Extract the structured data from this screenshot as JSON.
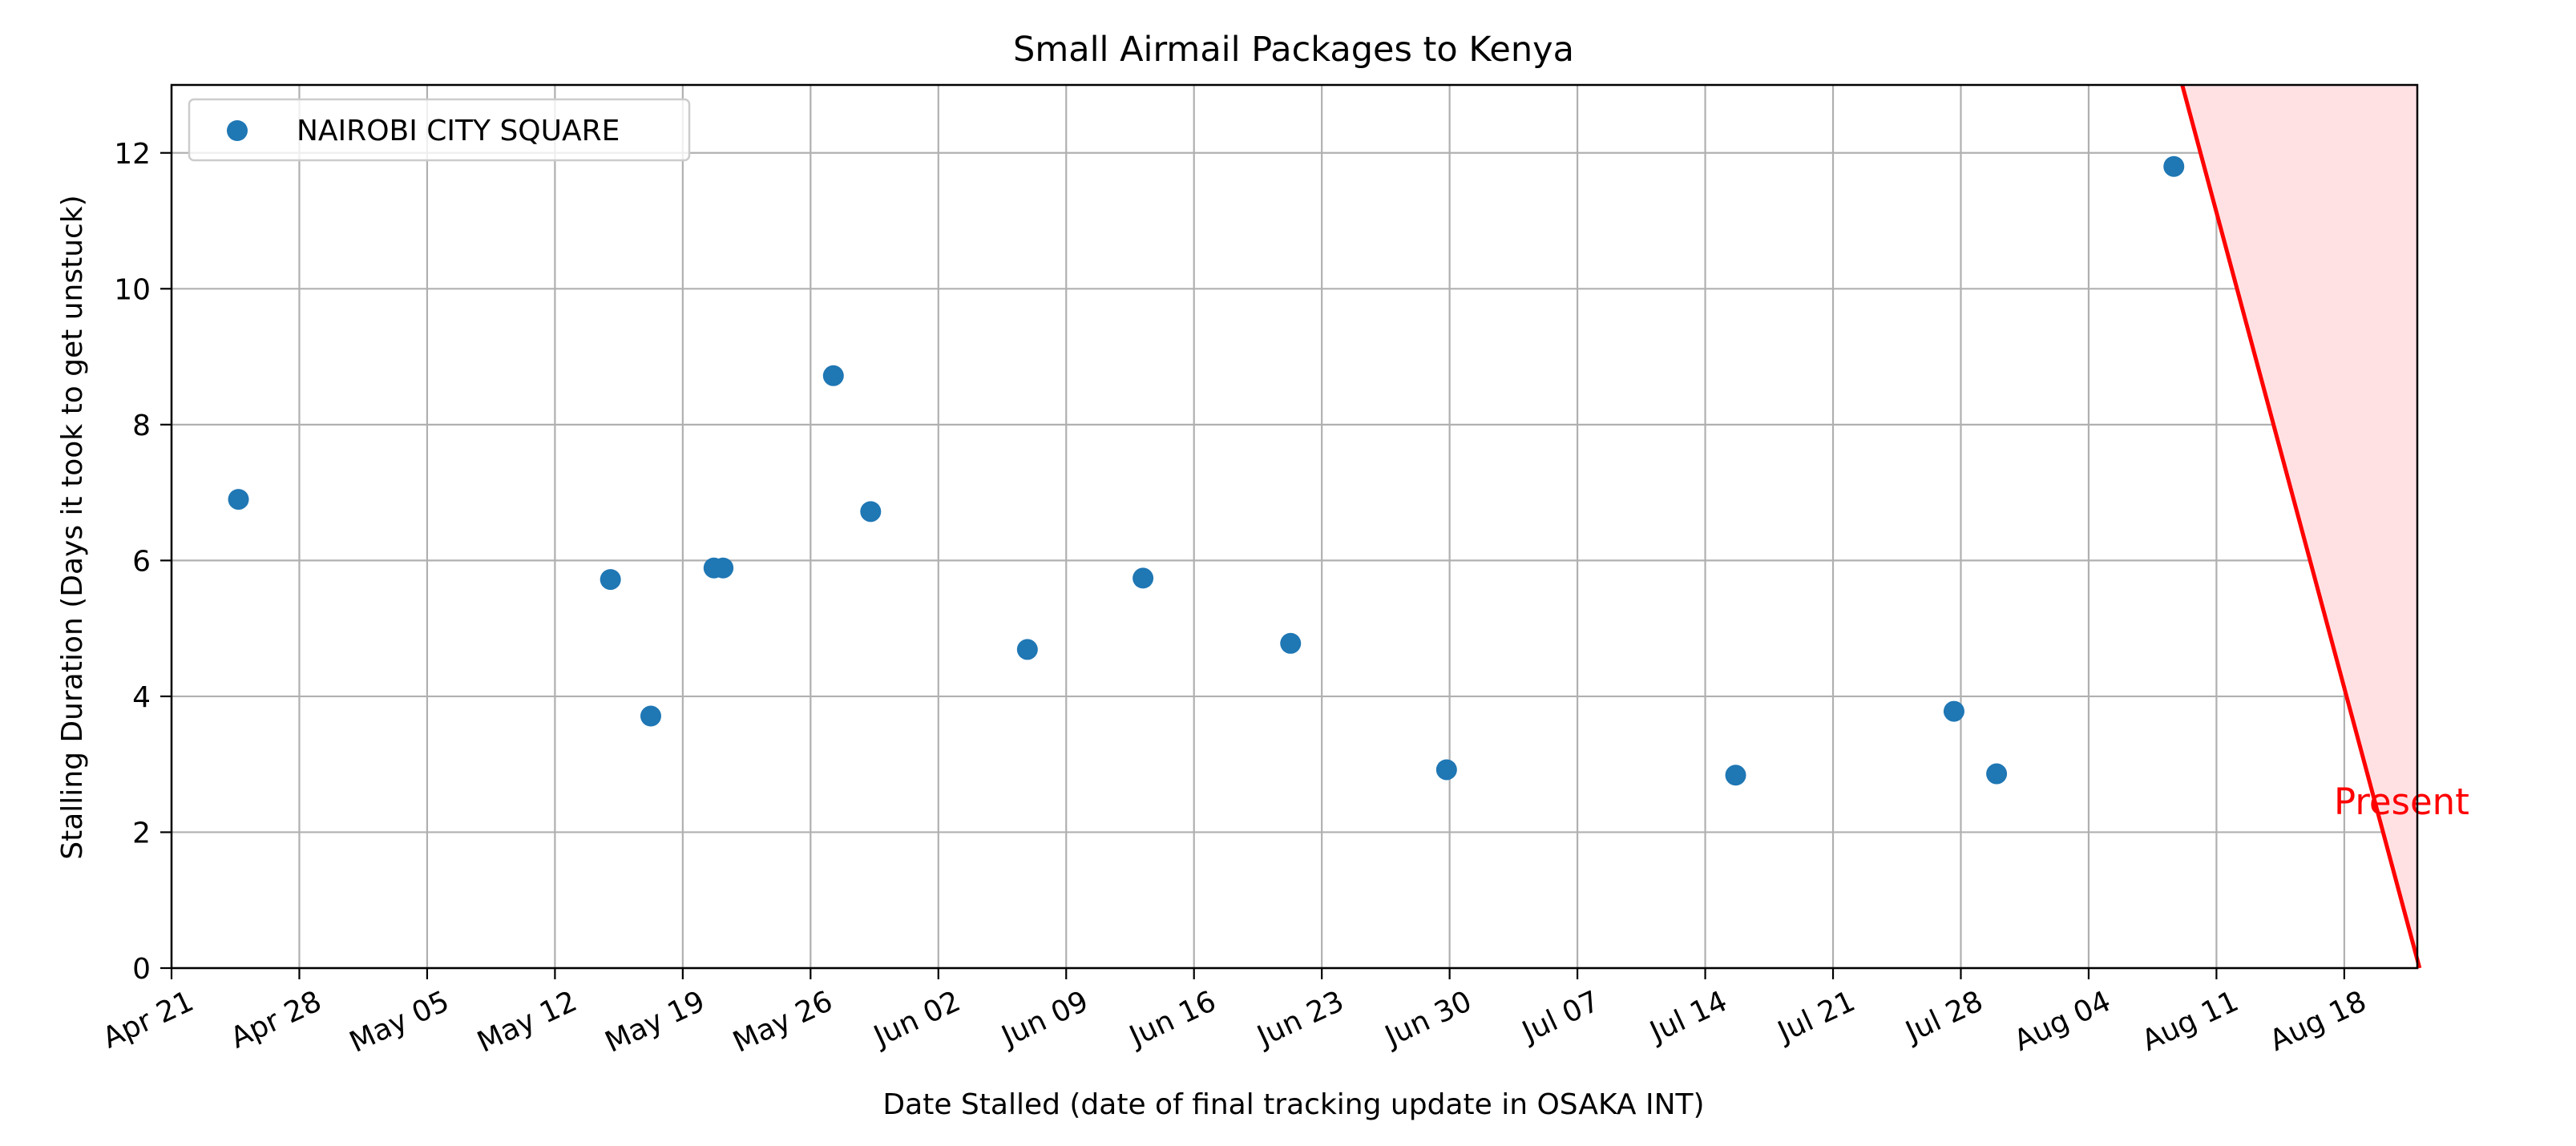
{
  "chart_data": {
    "type": "scatter",
    "title": "Small Airmail Packages to Kenya",
    "xlabel": "Date Stalled (date of final tracking update in OSAKA INT)",
    "ylabel": "Stalling Duration (Days it took to get unstuck)",
    "xlim": [
      "2025-04-21",
      "2025-08-22"
    ],
    "ylim": [
      0,
      13
    ],
    "x_ticks": [
      "Apr 21",
      "Apr 28",
      "May 05",
      "May 12",
      "May 19",
      "May 26",
      "Jun 02",
      "Jun 09",
      "Jun 16",
      "Jun 23",
      "Jun 30",
      "Jul 07",
      "Jul 14",
      "Jul 21",
      "Jul 28",
      "Aug 04",
      "Aug 11",
      "Aug 18"
    ],
    "y_ticks": [
      0,
      2,
      4,
      6,
      8,
      10,
      12
    ],
    "grid": true,
    "legend_position": "upper-left",
    "series": [
      {
        "name": "NAIROBI CITY SQUARE",
        "color": "#1f77b4",
        "points": [
          {
            "x": "2025-04-24T16:00",
            "y": 6.9
          },
          {
            "x": "2025-05-15T01:00",
            "y": 5.72
          },
          {
            "x": "2025-05-17T06:00",
            "y": 3.71
          },
          {
            "x": "2025-05-20T17:00",
            "y": 5.89
          },
          {
            "x": "2025-05-21T05:00",
            "y": 5.89
          },
          {
            "x": "2025-05-27T06:00",
            "y": 8.72
          },
          {
            "x": "2025-05-29T07:00",
            "y": 6.72
          },
          {
            "x": "2025-06-06T21:00",
            "y": 4.69
          },
          {
            "x": "2025-06-13T05:00",
            "y": 5.74
          },
          {
            "x": "2025-06-21T07:00",
            "y": 4.78
          },
          {
            "x": "2025-06-29T20:00",
            "y": 2.92
          },
          {
            "x": "2025-07-15T16:00",
            "y": 2.84
          },
          {
            "x": "2025-07-27T15:00",
            "y": 3.78
          },
          {
            "x": "2025-07-29T23:00",
            "y": 2.86
          },
          {
            "x": "2025-08-08T16:00",
            "y": 11.8
          }
        ]
      }
    ],
    "present_line": {
      "label": "Present",
      "color": "#ff0000",
      "fill": "#ffe1e4",
      "from": {
        "x": "2025-08-09T03:00",
        "y": 13
      },
      "to": {
        "x": "2025-08-22T03:00",
        "y": 0
      }
    }
  }
}
